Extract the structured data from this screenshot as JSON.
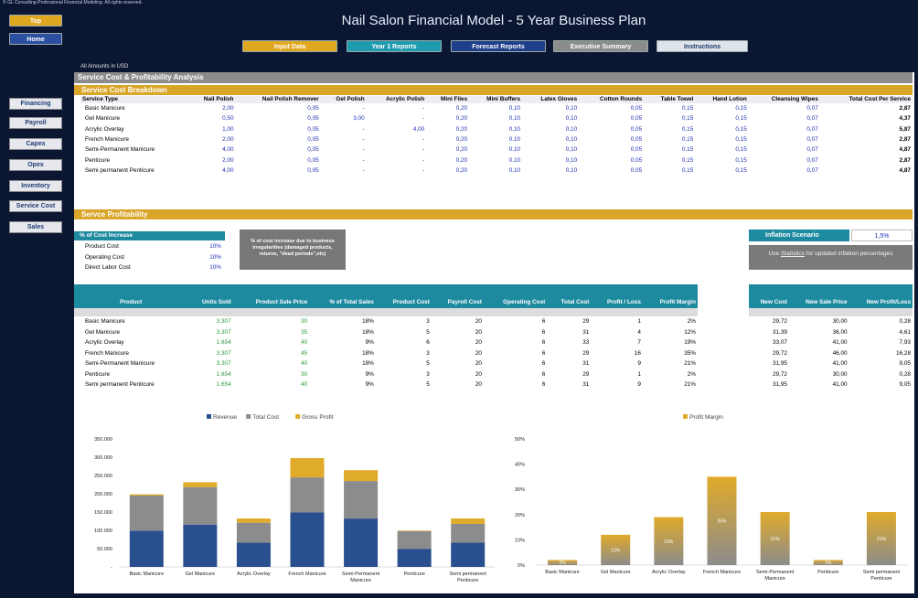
{
  "copyright": "© GL Consulting-Professional Financial Modeling. All rights reserved.",
  "title": "Nail Salon Financial Model - 5 Year Business Plan",
  "nav": {
    "top": "Top",
    "home": "Home"
  },
  "tabs": [
    {
      "label": "Input Data",
      "color": "#e0a820"
    },
    {
      "label": "Year 1 Reports",
      "color": "#1f9bb0"
    },
    {
      "label": "Forecast Reports",
      "color": "#1e3f8a"
    },
    {
      "label": "Executive Summary",
      "color": "#8c8c8c"
    },
    {
      "label": "Instructions",
      "color": "#dfe3ea"
    }
  ],
  "sidebar": [
    "Financing",
    "Payroll",
    "Capex",
    "Opex",
    "Inventory",
    "Service Cost",
    "Sales"
  ],
  "amounts_label": "All Amounts in  USD",
  "section_title": "Service Cost & Profitability Analysis",
  "breakdown": {
    "title": "Service Cost Breakdown",
    "headers": [
      "Service Type",
      "Nail Polish",
      "Nail Polish Remover",
      "Gel Polish",
      "Acrylic Polish",
      "Mini Files",
      "Mini Buffers",
      "Latex Gloves",
      "Cotton Rounds",
      "Table Towel",
      "Hand Lotion",
      "Cleansing Wipes",
      "Total Cost Per Service"
    ],
    "rows": [
      [
        "Basic Manicure",
        "2,00",
        "0,05",
        "-",
        "-",
        "0,20",
        "0,10",
        "0,10",
        "0,05",
        "0,15",
        "0,15",
        "0,07",
        "2,87"
      ],
      [
        "Gel Manicure",
        "0,50",
        "0,05",
        "3,00",
        "-",
        "0,20",
        "0,10",
        "0,10",
        "0,05",
        "0,15",
        "0,15",
        "0,07",
        "4,37"
      ],
      [
        "Acrylic Overlay",
        "1,00",
        "0,05",
        "-",
        "4,00",
        "0,20",
        "0,10",
        "0,10",
        "0,05",
        "0,15",
        "0,15",
        "0,07",
        "5,87"
      ],
      [
        "French Manicure",
        "2,00",
        "0,05",
        "-",
        "-",
        "0,20",
        "0,10",
        "0,10",
        "0,05",
        "0,15",
        "0,15",
        "0,07",
        "2,87"
      ],
      [
        "Semi-Permanent Manicure",
        "4,00",
        "0,05",
        "-",
        "-",
        "0,20",
        "0,10",
        "0,10",
        "0,05",
        "0,15",
        "0,15",
        "0,07",
        "4,87"
      ],
      [
        "Penticure",
        "2,00",
        "0,05",
        "-",
        "-",
        "0,20",
        "0,10",
        "0,10",
        "0,05",
        "0,15",
        "0,15",
        "0,07",
        "2,87"
      ],
      [
        "Semi permanent Penticure",
        "4,00",
        "0,05",
        "-",
        "-",
        "0,20",
        "0,10",
        "0,10",
        "0,05",
        "0,15",
        "0,15",
        "0,07",
        "4,87"
      ]
    ]
  },
  "profitability": {
    "title": "Servce Profitability",
    "increase_title": "% of Cost Increase",
    "increases": [
      {
        "label": "Product Cost",
        "value": "10%"
      },
      {
        "label": "Operating Cost",
        "value": "10%"
      },
      {
        "label": "Direct Labor Cost",
        "value": "10%"
      }
    ],
    "note": "% of cost increase due to business irregularities (damaged products, returns, \"dead periods\",etc)",
    "inflation_label": "Inflation Scenario",
    "inflation_value": "1,5%",
    "statistics_note_pre": "Use ",
    "statistics_link": "Statistics",
    "statistics_note_post": " for updated inflation percentages",
    "headers": [
      "Product",
      "Units Sold",
      "Product Sale Price",
      "% of Total Sales",
      "Product Cost",
      "Payroll Cost",
      "Operating Cost",
      "Total Cost",
      "Profit / Loss",
      "Profit Margin"
    ],
    "rows": [
      [
        "Basic Manicure",
        "3.307",
        "30",
        "18%",
        "3",
        "20",
        "6",
        "29",
        "1",
        "2%"
      ],
      [
        "Gel Manicure",
        "3.307",
        "35",
        "18%",
        "5",
        "20",
        "6",
        "31",
        "4",
        "12%"
      ],
      [
        "Acrylic Overlay",
        "1.654",
        "40",
        "9%",
        "6",
        "20",
        "6",
        "33",
        "7",
        "19%"
      ],
      [
        "French Manicure",
        "3.307",
        "45",
        "18%",
        "3",
        "20",
        "6",
        "29",
        "16",
        "35%"
      ],
      [
        "Semi-Permanent Manicure",
        "3.307",
        "40",
        "18%",
        "5",
        "20",
        "6",
        "31",
        "9",
        "21%"
      ],
      [
        "Penticure",
        "1.654",
        "30",
        "9%",
        "3",
        "20",
        "6",
        "29",
        "1",
        "2%"
      ],
      [
        "Semi permanent Penticure",
        "1.654",
        "40",
        "9%",
        "5",
        "20",
        "6",
        "31",
        "9",
        "21%"
      ]
    ],
    "side_headers": [
      "New Cost",
      "New Sale Price",
      "New Profit/Loss"
    ],
    "side_rows": [
      [
        "29,72",
        "30,00",
        "0,28"
      ],
      [
        "31,39",
        "36,00",
        "4,61"
      ],
      [
        "33,07",
        "41,00",
        "7,93"
      ],
      [
        "29,72",
        "46,00",
        "16,28"
      ],
      [
        "31,95",
        "41,00",
        "9,05"
      ],
      [
        "29,72",
        "30,00",
        "0,28"
      ],
      [
        "31,95",
        "41,00",
        "9,05"
      ]
    ]
  },
  "chart_data": [
    {
      "type": "bar",
      "categories": [
        "Basic Manicure",
        "Gel Manicure",
        "Acrylic Overlay",
        "French Manicure",
        "Semi-Permanent Manicure",
        "Penticure",
        "Semi permanent Penticure"
      ],
      "series": [
        {
          "name": "Revenue",
          "color": "#2a4f8f",
          "values": [
            99210,
            115745,
            66160,
            148815,
            132280,
            49620,
            66160
          ]
        },
        {
          "name": "Total Cost",
          "color": "#8c8c8c",
          "values": [
            95903,
            102517,
            54582,
            95903,
            102517,
            47966,
            51275
          ]
        },
        {
          "name": "Gross Profit",
          "color": "#e0aa2a",
          "values": [
            3307,
            13228,
            11578,
            52912,
            29763,
            1654,
            14885
          ]
        }
      ],
      "y_ticks": [
        "-",
        "50.000",
        "100.000",
        "150.000",
        "200.000",
        "250.000",
        "300.000",
        "350.000"
      ],
      "ylim": [
        0,
        350000
      ]
    },
    {
      "type": "bar",
      "categories": [
        "Basic Manicure",
        "Gel Manicure",
        "Acrylic Overlay",
        "French Manicure",
        "Semi-Permanent Manicure",
        "Penticure",
        "Semi permanent Penticure"
      ],
      "series": [
        {
          "name": "Profit Margin",
          "color": "#e0aa2a",
          "values": [
            2,
            12,
            19,
            35,
            21,
            2,
            21
          ]
        }
      ],
      "data_labels": [
        "2%",
        "12%",
        "19%",
        "35%",
        "21%",
        "2%",
        "21%"
      ],
      "y_ticks": [
        "0%",
        "10%",
        "20%",
        "30%",
        "40%",
        "50%"
      ],
      "ylim": [
        0,
        50
      ]
    }
  ]
}
